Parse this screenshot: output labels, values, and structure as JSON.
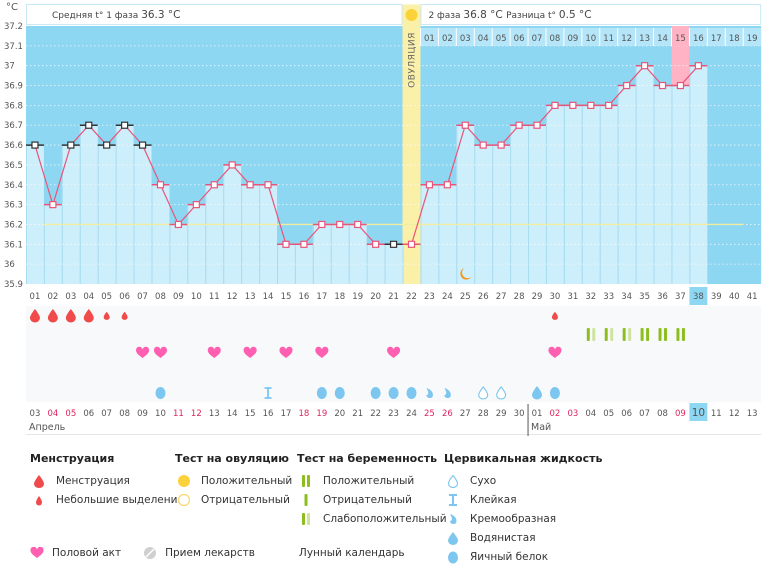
{
  "header": {
    "unit": "°C",
    "phase1_label": "Средняя t° 1 фаза",
    "phase1_value": "36.3 °C",
    "phase2_label": "2 фаза",
    "phase2_value": "36.8 °C",
    "diff_label": "Разница t°",
    "diff_value": "0.5 °C",
    "ovulation_label": "ОВУЛЯЦИЯ"
  },
  "colors": {
    "bg_sky": "#8ed7f2",
    "bar_fill": "#cdeefb",
    "line": "#e8557a",
    "ovulation": "#faf0a8",
    "highlight_pink": "#ffb3c4",
    "coverline": "#f1eea0",
    "red_date": "#e0245e",
    "blood": "#f04a4a",
    "heart": "#ff5fb0",
    "fluid": "#7cc6ef",
    "test_dark": "#8cbf1e",
    "test_light": "#cfe3a0"
  },
  "chart_data": {
    "type": "line",
    "title": "Базальная температура",
    "ylabel": "°C",
    "ylim": [
      35.9,
      37.2
    ],
    "yticks": [
      "37.2",
      "37.1",
      "37",
      "36.9",
      "36.8",
      "36.7",
      "36.6",
      "36.5",
      "36.4",
      "36.3",
      "36.2",
      "36.1",
      "36",
      "35.9"
    ],
    "coverline": 36.2,
    "cycle_days": [
      "01",
      "02",
      "03",
      "04",
      "05",
      "06",
      "07",
      "08",
      "09",
      "10",
      "11",
      "12",
      "13",
      "14",
      "15",
      "16",
      "17",
      "18",
      "19",
      "20",
      "21",
      "22",
      "23",
      "24",
      "25",
      "26",
      "27",
      "28",
      "29",
      "30",
      "31",
      "32",
      "33",
      "34",
      "35",
      "36",
      "37",
      "38",
      "39",
      "40",
      "41"
    ],
    "current_day": "38",
    "ovulation_day": 22,
    "phase2_days": [
      "01",
      "02",
      "03",
      "04",
      "05",
      "06",
      "07",
      "08",
      "09",
      "10",
      "11",
      "12",
      "13",
      "14",
      "15",
      "16",
      "17",
      "18",
      "19"
    ],
    "highlight_phase2_day": "15",
    "temperatures": [
      36.6,
      36.3,
      36.6,
      36.7,
      36.6,
      36.7,
      36.6,
      36.4,
      36.2,
      36.3,
      36.4,
      36.5,
      36.4,
      36.4,
      36.1,
      36.1,
      36.2,
      36.2,
      36.2,
      36.1,
      36.1,
      36.1,
      36.4,
      36.4,
      36.7,
      36.6,
      36.6,
      36.7,
      36.7,
      36.8,
      36.8,
      36.8,
      36.8,
      36.9,
      37.0,
      36.9,
      36.9,
      37.0,
      null,
      null,
      null
    ],
    "excluded_points": [
      1,
      3,
      4,
      5,
      6,
      7,
      21
    ],
    "moon_day": 25,
    "menstruation": [
      {
        "day": 1,
        "type": "heavy"
      },
      {
        "day": 2,
        "type": "heavy"
      },
      {
        "day": 3,
        "type": "heavy"
      },
      {
        "day": 4,
        "type": "heavy"
      },
      {
        "day": 5,
        "type": "spotting"
      },
      {
        "day": 6,
        "type": "spotting"
      },
      {
        "day": 30,
        "type": "spotting"
      }
    ],
    "pregnancy_tests": [
      {
        "day": 32,
        "result": "weak"
      },
      {
        "day": 33,
        "result": "weak"
      },
      {
        "day": 34,
        "result": "weak"
      },
      {
        "day": 35,
        "result": "positive"
      },
      {
        "day": 36,
        "result": "positive"
      },
      {
        "day": 37,
        "result": "positive"
      }
    ],
    "intercourse_days": [
      7,
      8,
      11,
      13,
      15,
      17,
      21,
      30
    ],
    "cervical_fluid": [
      {
        "day": 8,
        "type": "eggwhite"
      },
      {
        "day": 14,
        "type": "sticky"
      },
      {
        "day": 17,
        "type": "eggwhite"
      },
      {
        "day": 18,
        "type": "eggwhite"
      },
      {
        "day": 20,
        "type": "eggwhite"
      },
      {
        "day": 21,
        "type": "eggwhite"
      },
      {
        "day": 22,
        "type": "eggwhite"
      },
      {
        "day": 23,
        "type": "creamy"
      },
      {
        "day": 24,
        "type": "creamy"
      },
      {
        "day": 26,
        "type": "dry"
      },
      {
        "day": 27,
        "type": "dry"
      },
      {
        "day": 29,
        "type": "watery"
      },
      {
        "day": 30,
        "type": "eggwhite"
      }
    ],
    "dates": [
      "03",
      "04",
      "05",
      "06",
      "07",
      "08",
      "09",
      "10",
      "11",
      "12",
      "13",
      "14",
      "15",
      "16",
      "17",
      "18",
      "19",
      "20",
      "21",
      "22",
      "23",
      "24",
      "25",
      "26",
      "27",
      "28",
      "29",
      "30",
      "01",
      "02",
      "03",
      "04",
      "05",
      "06",
      "07",
      "08",
      "09",
      "10",
      "11",
      "12",
      "13"
    ],
    "weekend_indices": [
      1,
      2,
      8,
      9,
      15,
      16,
      22,
      23,
      29,
      30,
      36
    ],
    "current_date_index": 37,
    "months": [
      {
        "label": "Апрель",
        "start_index": 0
      },
      {
        "label": "Май",
        "start_index": 28
      }
    ]
  },
  "legend": {
    "menstruation": {
      "title": "Менструация",
      "items": [
        "Менструация",
        "Небольшие выделения"
      ]
    },
    "ovulation_test": {
      "title": "Тест на овуляцию",
      "items": [
        "Положительный",
        "Отрицательный"
      ]
    },
    "pregnancy_test": {
      "title": "Тест на беременность",
      "items": [
        "Положительный",
        "Отрицательный",
        "Слабоположительный"
      ]
    },
    "cervical_fluid": {
      "title": "Цервикальная жидкость",
      "items": [
        "Сухо",
        "Клейкая",
        "Кремообразная",
        "Водянистая",
        "Яичный белок"
      ]
    },
    "bottom": [
      "Половой акт",
      "Прием лекарств",
      "Лунный календарь"
    ]
  }
}
